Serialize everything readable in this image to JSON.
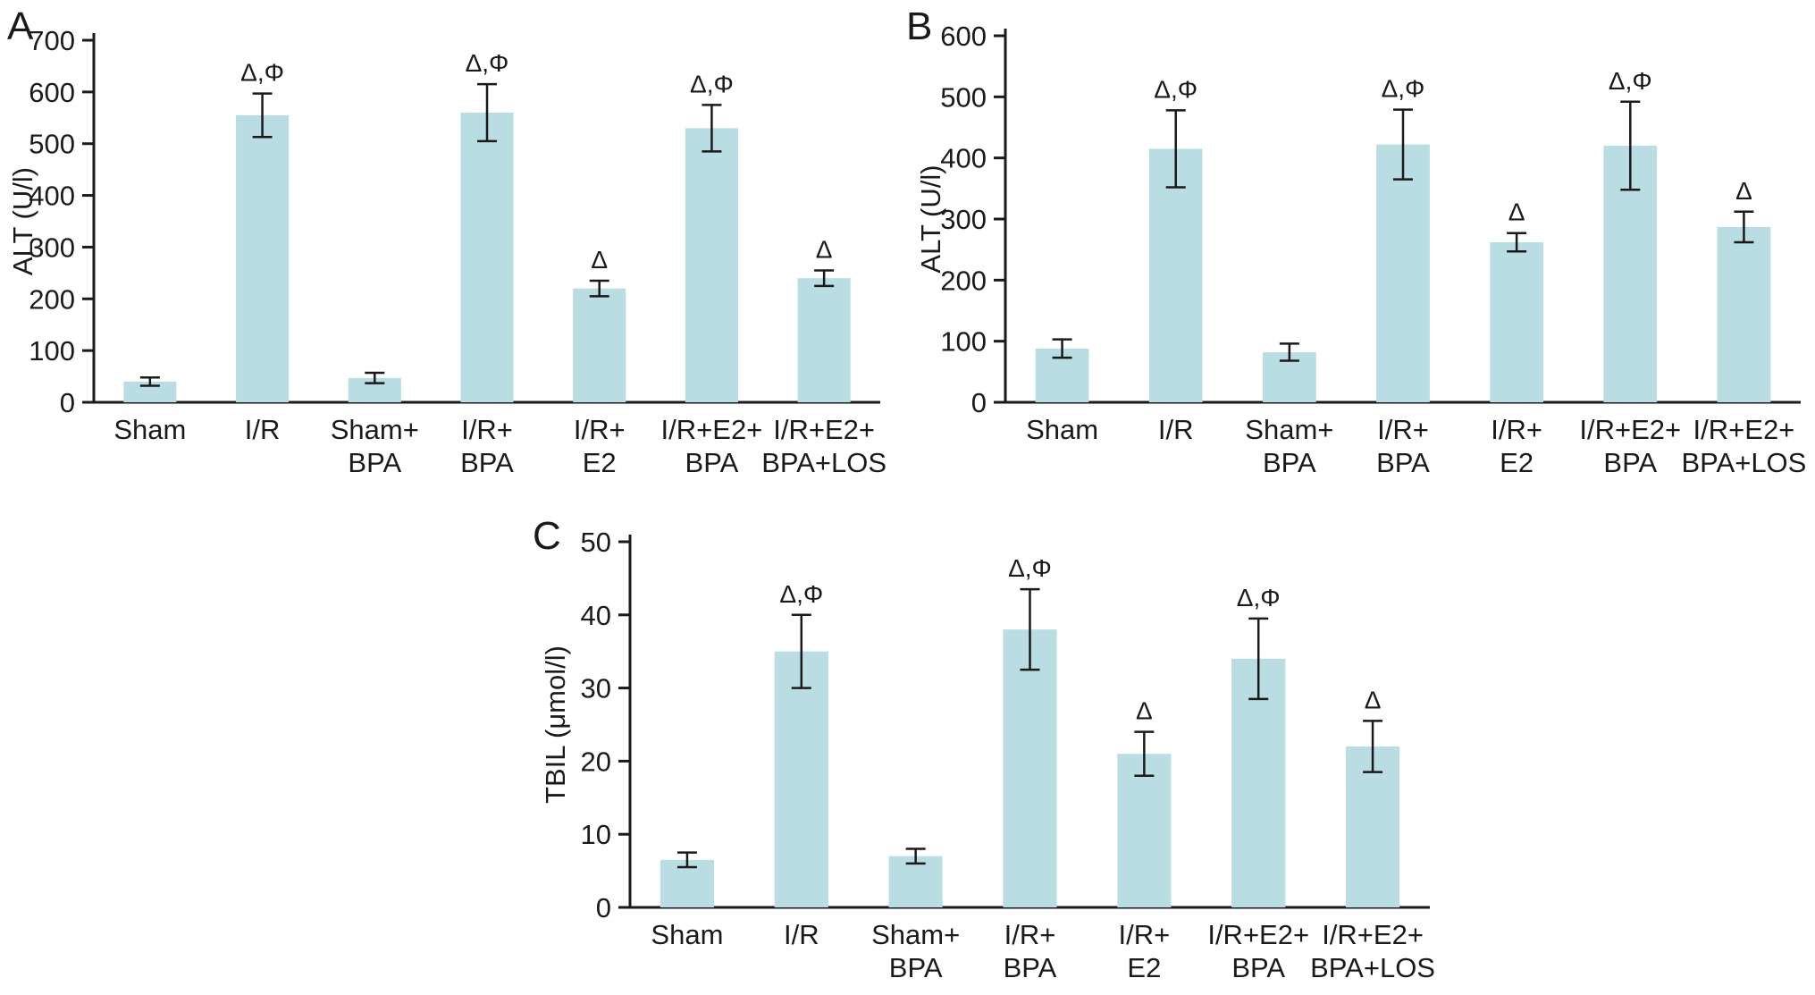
{
  "figure": {
    "background": "#ffffff",
    "bar_color": "#b9dde2",
    "axis_color": "#1a1a1a"
  },
  "chart_data": [
    {
      "id": "A",
      "type": "bar",
      "panel_label": "A",
      "ylabel": "ALT (U/l)",
      "ylim": [
        0,
        700
      ],
      "ytick_step": 100,
      "grid": false,
      "legend": "none",
      "categories": [
        [
          "Sham"
        ],
        [
          "I/R"
        ],
        [
          "Sham+",
          "BPA"
        ],
        [
          "I/R+",
          "BPA"
        ],
        [
          "I/R+",
          "E2"
        ],
        [
          "I/R+E2+",
          "BPA"
        ],
        [
          "I/R+E2+",
          "BPA+LOS"
        ]
      ],
      "values": [
        40,
        555,
        47,
        560,
        220,
        530,
        240
      ],
      "errors": [
        8,
        42,
        10,
        55,
        15,
        45,
        15
      ],
      "annotations": [
        "",
        "Δ,Φ",
        "",
        "Δ,Φ",
        "Δ",
        "Δ,Φ",
        "Δ"
      ]
    },
    {
      "id": "B",
      "type": "bar",
      "panel_label": "B",
      "ylabel": "ALT (U/l)",
      "ylim": [
        0,
        600
      ],
      "ytick_step": 100,
      "grid": false,
      "legend": "none",
      "categories": [
        [
          "Sham"
        ],
        [
          "I/R"
        ],
        [
          "Sham+",
          "BPA"
        ],
        [
          "I/R+",
          "BPA"
        ],
        [
          "I/R+",
          "E2"
        ],
        [
          "I/R+E2+",
          "BPA"
        ],
        [
          "I/R+E2+",
          "BPA+LOS"
        ]
      ],
      "values": [
        88,
        415,
        82,
        422,
        262,
        420,
        287
      ],
      "errors": [
        15,
        63,
        14,
        57,
        15,
        72,
        25
      ],
      "annotations": [
        "",
        "Δ,Φ",
        "",
        "Δ,Φ",
        "Δ",
        "Δ,Φ",
        "Δ"
      ]
    },
    {
      "id": "C",
      "type": "bar",
      "panel_label": "C",
      "ylabel": "TBIL (μmol/l)",
      "ylim": [
        0,
        50
      ],
      "ytick_step": 10,
      "grid": false,
      "legend": "none",
      "categories": [
        [
          "Sham"
        ],
        [
          "I/R"
        ],
        [
          "Sham+",
          "BPA"
        ],
        [
          "I/R+",
          "BPA"
        ],
        [
          "I/R+",
          "E2"
        ],
        [
          "I/R+E2+",
          "BPA"
        ],
        [
          "I/R+E2+",
          "BPA+LOS"
        ]
      ],
      "values": [
        6.5,
        35,
        7,
        38,
        21,
        34,
        22
      ],
      "errors": [
        1,
        5,
        1,
        5.5,
        3,
        5.5,
        3.5
      ],
      "annotations": [
        "",
        "Δ,Φ",
        "",
        "Δ,Φ",
        "Δ",
        "Δ,Φ",
        "Δ"
      ]
    }
  ]
}
